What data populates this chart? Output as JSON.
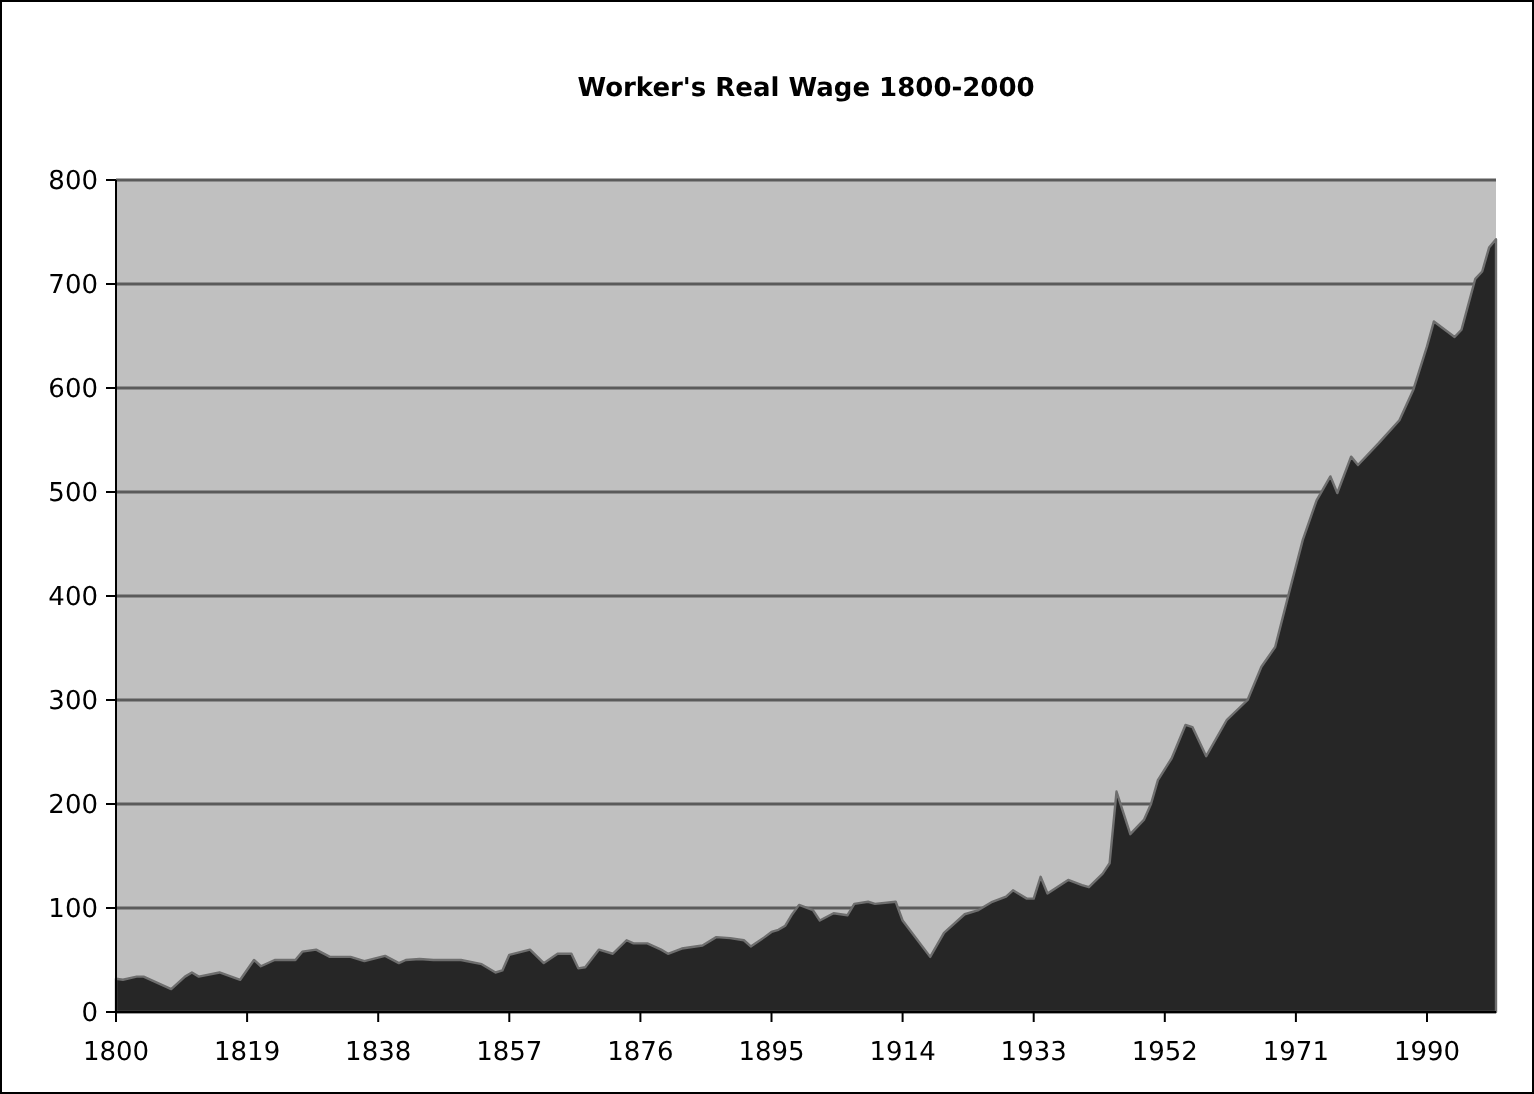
{
  "chart_data": {
    "type": "area",
    "title": "Worker's Real Wage 1800-2000",
    "x": [
      1800,
      1801,
      1803,
      1804,
      1806,
      1808,
      1810,
      1811,
      1812,
      1815,
      1818,
      1820,
      1821,
      1823,
      1826,
      1827,
      1829,
      1831,
      1834,
      1836,
      1839,
      1841,
      1842,
      1844,
      1846,
      1850,
      1853,
      1855,
      1856,
      1857,
      1860,
      1862,
      1864,
      1866,
      1867,
      1868,
      1870,
      1872,
      1874,
      1875,
      1877,
      1879,
      1880,
      1882,
      1885,
      1887,
      1889,
      1891,
      1892,
      1894,
      1895,
      1896,
      1897,
      1898,
      1899,
      1901,
      1902,
      1904,
      1906,
      1907,
      1909,
      1910,
      1913,
      1914,
      1918,
      1920,
      1923,
      1925,
      1927,
      1929,
      1930,
      1932,
      1933,
      1934,
      1935,
      1938,
      1940,
      1941,
      1943,
      1944,
      1945,
      1947,
      1949,
      1950,
      1951,
      1953,
      1955,
      1956,
      1958,
      1961,
      1964,
      1966,
      1968,
      1970,
      1972,
      1974,
      1976,
      1977,
      1979,
      1980,
      1983,
      1986,
      1988,
      1990,
      1991,
      1994,
      1995,
      1997,
      1998,
      1999,
      2000
    ],
    "values": [
      32,
      31,
      34,
      34,
      28,
      22,
      34,
      38,
      34,
      38,
      31,
      50,
      44,
      50,
      50,
      58,
      60,
      53,
      53,
      49,
      54,
      47,
      50,
      51,
      50,
      50,
      46,
      38,
      40,
      55,
      60,
      47,
      56,
      56,
      42,
      43,
      60,
      56,
      69,
      66,
      66,
      60,
      56,
      61,
      64,
      72,
      71,
      69,
      63,
      72,
      77,
      79,
      83,
      94,
      103,
      98,
      88,
      95,
      93,
      104,
      106,
      104,
      106,
      88,
      53,
      76,
      94,
      98,
      106,
      111,
      117,
      109,
      109,
      130,
      114,
      127,
      122,
      120,
      133,
      143,
      212,
      171,
      185,
      200,
      223,
      244,
      276,
      274,
      246,
      281,
      300,
      332,
      351,
      403,
      454,
      492,
      515,
      499,
      534,
      526,
      547,
      569,
      598,
      640,
      664,
      649,
      656,
      705,
      712,
      735,
      743
    ],
    "color": "#262626",
    "xlim": [
      1800,
      2000
    ],
    "xticks": [
      1800,
      1819,
      1838,
      1857,
      1876,
      1895,
      1914,
      1933,
      1952,
      1971,
      1990
    ],
    "ylim": [
      0,
      800
    ],
    "yticks": [
      0,
      100,
      200,
      300,
      400,
      500,
      600,
      700,
      800
    ],
    "grid": "y"
  }
}
